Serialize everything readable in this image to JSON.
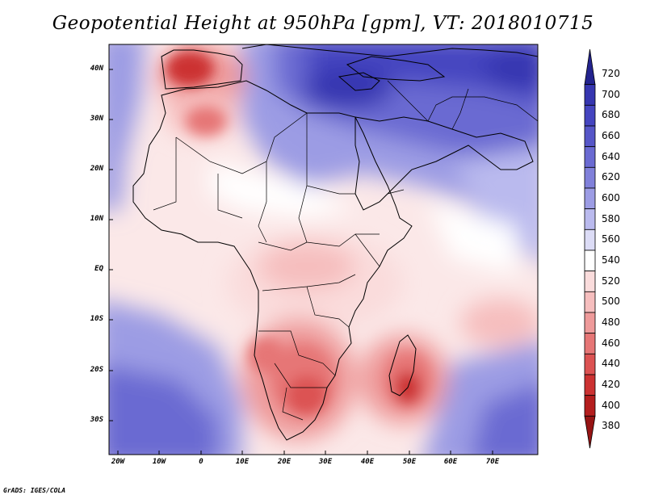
{
  "title": "Geopotential Height at 950hPa [gpm], VT: 2018010715",
  "credit": "GrADS: IGES/COLA",
  "lat_labels": [
    "40N",
    "30N",
    "20N",
    "10N",
    "EQ",
    "10S",
    "20S",
    "30S"
  ],
  "lon_labels": [
    "20W",
    "10W",
    "0",
    "10E",
    "20E",
    "30E",
    "40E",
    "50E",
    "60E",
    "70E"
  ],
  "colorbar": {
    "levels": [
      "720",
      "700",
      "680",
      "660",
      "640",
      "620",
      "600",
      "580",
      "560",
      "540",
      "520",
      "500",
      "480",
      "460",
      "440",
      "420",
      "400",
      "380"
    ],
    "colors": [
      "#23238e",
      "#3636b0",
      "#4545c0",
      "#5656c8",
      "#6a6ad2",
      "#8080da",
      "#9c9ce4",
      "#babaee",
      "#dcdcf6",
      "#ffffff",
      "#fadcdc",
      "#f6bebe",
      "#ee9a9a",
      "#e67676",
      "#dc5252",
      "#cc3232",
      "#b41e1e",
      "#961414"
    ]
  }
}
